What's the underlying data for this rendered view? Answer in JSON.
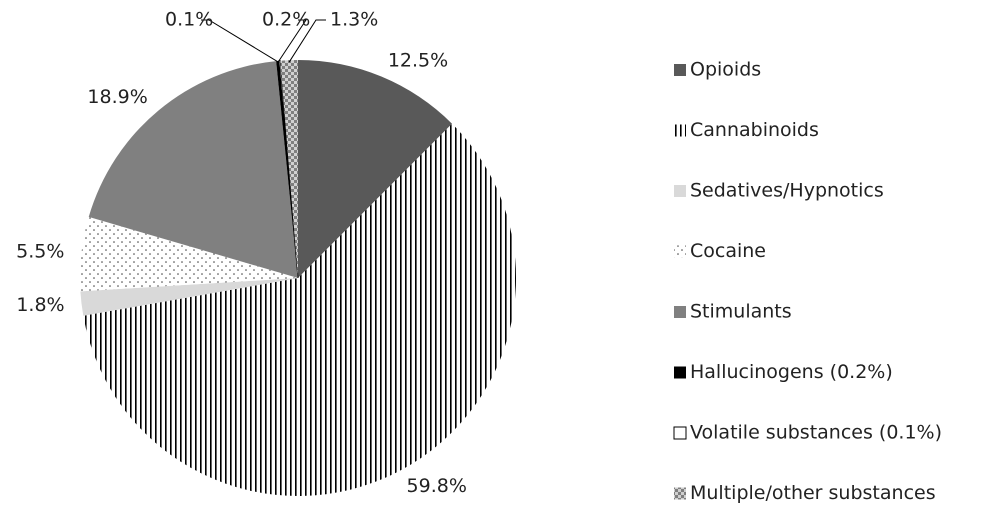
{
  "chart_data": {
    "type": "pie",
    "categories": [
      "Opioids",
      "Cannabinoids",
      "Sedatives/Hypnotics",
      "Cocaine",
      "Stimulants",
      "Hallucinogens (0.2%)",
      "Volatile substances (0.1%)",
      "Multiple/other substances"
    ],
    "values": [
      12.5,
      59.8,
      1.8,
      5.5,
      18.9,
      0.2,
      0.1,
      1.3
    ],
    "value_labels": [
      "12.5%",
      "59.8%",
      "1.8%",
      "5.5%",
      "18.9%",
      "0.2%",
      "0.1%",
      "1.3%"
    ],
    "colors": [
      "#595959",
      "#000000",
      "#d9d9d9",
      "#404040",
      "#808080",
      "#000000",
      "#ffffff",
      "#7f7f7f"
    ],
    "patterns": [
      "solid",
      "vertical-lines",
      "solid",
      "dots",
      "solid",
      "solid",
      "solid",
      "checker"
    ],
    "legend": "right"
  }
}
